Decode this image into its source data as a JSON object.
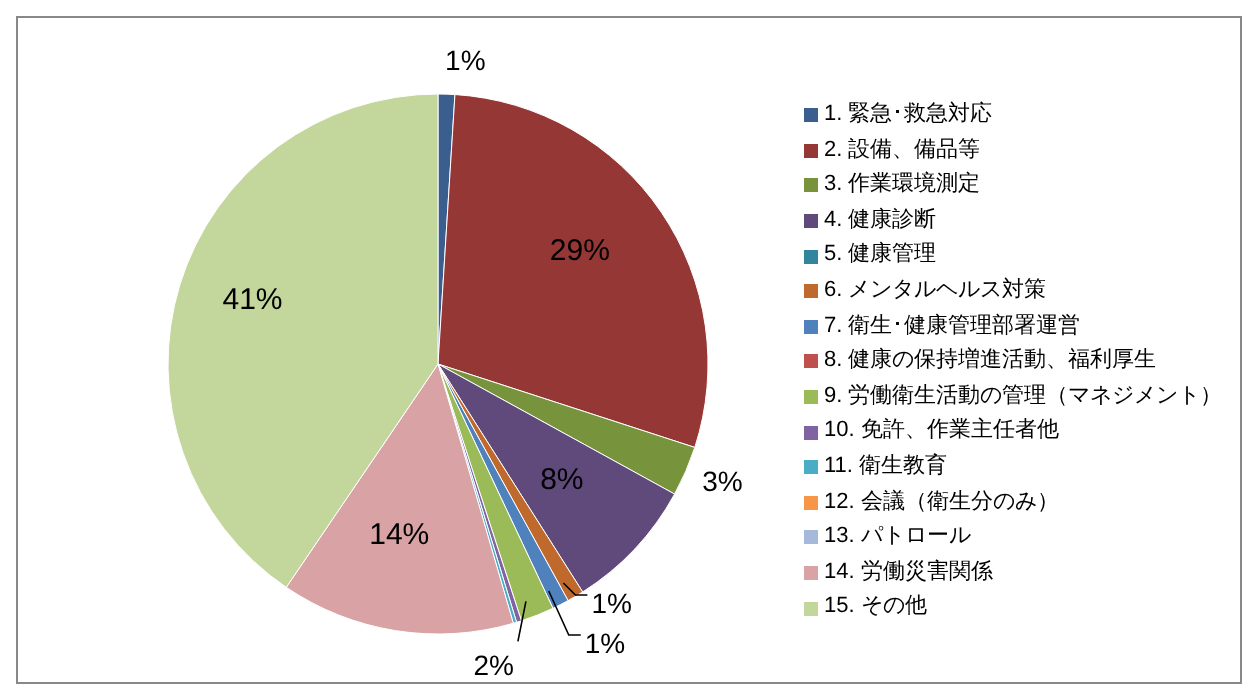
{
  "chart_data": {
    "type": "pie",
    "categories": [
      "1. 緊急･救急対応",
      "2. 設備、備品等",
      "3. 作業環境測定",
      "4. 健康診断",
      "5. 健康管理",
      "6. メンタルヘルス対策",
      "7. 衛生･健康管理部署運営",
      "8. 健康の保持増進活動、福利厚生",
      "9. 労働衛生活動の管理（マネジメント）",
      "10. 免許、作業主任者他",
      "11. 衛生教育",
      "12. 会議（衛生分のみ）",
      "13. パトロール",
      "14. 労働災害関係",
      "15. その他"
    ],
    "values": [
      1,
      29,
      3,
      8,
      0,
      1,
      1,
      0,
      2,
      0.3,
      0.2,
      0,
      0,
      14,
      40.5
    ],
    "value_labels": [
      "1%",
      "29%",
      "3%",
      "8%",
      null,
      "1%",
      "1%",
      null,
      "2%",
      null,
      null,
      null,
      null,
      "14%",
      "41%"
    ],
    "colors": [
      "#3a5f8f",
      "#953735",
      "#77933c",
      "#604a7b",
      "#31859c",
      "#c0692c",
      "#4f81bd",
      "#c0504d",
      "#9bbb59",
      "#8064a2",
      "#4bacc6",
      "#f79646",
      "#a7b9da",
      "#d9a3a5",
      "#c3d69b"
    ],
    "legend": "right"
  }
}
